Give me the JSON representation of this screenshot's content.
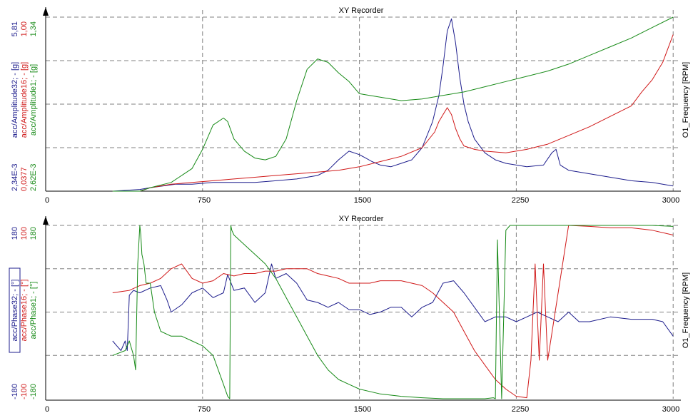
{
  "colors": {
    "blue": "#1c1c8c",
    "red": "#d01818",
    "green": "#178a17",
    "grid": "#808080"
  },
  "chart_data": [
    {
      "type": "line",
      "title": "XY Recorder",
      "xlabel": "O1_Frequency [RPM]",
      "xlim": [
        0,
        3030
      ],
      "xticks": [
        "0",
        "750",
        "1500",
        "2250",
        "3000"
      ],
      "grid": true,
      "axes": [
        {
          "label": "acc/Amplitude32; - [g]",
          "min_label": "2,34E-3",
          "max_label": "5,81",
          "color": "blue"
        },
        {
          "label": "acc/Amplitude16; - [g]",
          "min_label": "0,0377",
          "max_label": "1,00",
          "color": "red"
        },
        {
          "label": "acc/Amplitude1; - [g]",
          "min_label": "2,62E-3",
          "max_label": "1,34",
          "color": "green"
        }
      ],
      "series": [
        {
          "name": "acc/Amplitude32",
          "color": "blue",
          "x": [
            320,
            450,
            500,
            560,
            620,
            700,
            800,
            900,
            1000,
            1100,
            1200,
            1300,
            1350,
            1400,
            1450,
            1500,
            1530,
            1560,
            1600,
            1650,
            1700,
            1750,
            1800,
            1850,
            1880,
            1900,
            1920,
            1940,
            1960,
            1980,
            2000,
            2020,
            2050,
            2100,
            2150,
            2200,
            2300,
            2380,
            2420,
            2440,
            2460,
            2500,
            2600,
            2700,
            2800,
            2900,
            3000
          ],
          "y": [
            0.0,
            0.01,
            0.02,
            0.03,
            0.04,
            0.04,
            0.05,
            0.05,
            0.05,
            0.06,
            0.07,
            0.09,
            0.12,
            0.18,
            0.23,
            0.21,
            0.19,
            0.17,
            0.15,
            0.14,
            0.16,
            0.18,
            0.25,
            0.4,
            0.55,
            0.72,
            0.92,
            0.99,
            0.85,
            0.65,
            0.5,
            0.4,
            0.3,
            0.22,
            0.18,
            0.16,
            0.14,
            0.15,
            0.22,
            0.24,
            0.15,
            0.12,
            0.1,
            0.08,
            0.06,
            0.05,
            0.03
          ]
        },
        {
          "name": "acc/Amplitude16",
          "color": "red",
          "x": [
            320,
            450,
            500,
            550,
            600,
            700,
            800,
            900,
            1000,
            1100,
            1200,
            1300,
            1400,
            1500,
            1600,
            1700,
            1800,
            1860,
            1880,
            1900,
            1920,
            1940,
            1960,
            1980,
            2000,
            2050,
            2100,
            2200,
            2300,
            2400,
            2500,
            2600,
            2700,
            2800,
            2850,
            2900,
            2950,
            3000
          ],
          "y": [
            0.0,
            0.0,
            0.02,
            0.03,
            0.04,
            0.05,
            0.06,
            0.07,
            0.08,
            0.09,
            0.1,
            0.11,
            0.12,
            0.14,
            0.17,
            0.2,
            0.25,
            0.34,
            0.4,
            0.44,
            0.48,
            0.44,
            0.36,
            0.3,
            0.26,
            0.24,
            0.23,
            0.22,
            0.24,
            0.27,
            0.32,
            0.37,
            0.43,
            0.49,
            0.57,
            0.64,
            0.74,
            0.9
          ]
        },
        {
          "name": "acc/Amplitude1",
          "color": "green",
          "x": [
            320,
            450,
            500,
            600,
            700,
            750,
            800,
            850,
            870,
            900,
            950,
            1000,
            1050,
            1100,
            1150,
            1200,
            1250,
            1300,
            1350,
            1400,
            1450,
            1500,
            1600,
            1700,
            1800,
            1900,
            2000,
            2100,
            2200,
            2300,
            2400,
            2500,
            2600,
            2700,
            2800,
            2900,
            3000
          ],
          "y": [
            0.0,
            0.0,
            0.02,
            0.05,
            0.13,
            0.24,
            0.38,
            0.42,
            0.4,
            0.3,
            0.23,
            0.19,
            0.18,
            0.2,
            0.3,
            0.52,
            0.7,
            0.76,
            0.74,
            0.68,
            0.63,
            0.56,
            0.54,
            0.52,
            0.53,
            0.55,
            0.57,
            0.6,
            0.63,
            0.66,
            0.69,
            0.73,
            0.78,
            0.83,
            0.88,
            0.94,
            1.0
          ]
        }
      ]
    },
    {
      "type": "line",
      "title": "XY Recorder",
      "xlabel": "O1_Frequency [RPM]",
      "xlim": [
        0,
        3030
      ],
      "xticks": [
        "0",
        "750",
        "1500",
        "2250",
        "3000"
      ],
      "ylim": [
        -180,
        180
      ],
      "grid": true,
      "axes": [
        {
          "label": "acc/Phase32; - [°]",
          "min_label": "-180",
          "max_label": "180",
          "color": "blue"
        },
        {
          "label": "acc/Phase16; - [°]",
          "min_label": "-100",
          "max_label": "100",
          "color": "red"
        },
        {
          "label": "acc/Phase1; - [°]",
          "min_label": "-180",
          "max_label": "180",
          "color": "green"
        }
      ],
      "series": [
        {
          "name": "acc/Phase32",
          "color": "blue",
          "x": [
            320,
            340,
            360,
            380,
            390,
            400,
            420,
            450,
            500,
            550,
            580,
            600,
            650,
            700,
            750,
            800,
            850,
            870,
            900,
            950,
            1000,
            1050,
            1080,
            1100,
            1150,
            1200,
            1250,
            1300,
            1350,
            1400,
            1450,
            1500,
            1550,
            1600,
            1650,
            1700,
            1750,
            1800,
            1850,
            1900,
            1950,
            2000,
            2050,
            2100,
            2150,
            2200,
            2250,
            2300,
            2350,
            2400,
            2450,
            2500,
            2550,
            2600,
            2700,
            2800,
            2900,
            2950,
            3000
          ],
          "y": [
            -60,
            -70,
            -80,
            -60,
            -80,
            35,
            45,
            40,
            50,
            55,
            25,
            0,
            15,
            40,
            50,
            30,
            40,
            78,
            45,
            50,
            20,
            40,
            100,
            70,
            80,
            60,
            25,
            20,
            10,
            20,
            5,
            5,
            -5,
            0,
            10,
            10,
            -10,
            10,
            20,
            60,
            65,
            40,
            10,
            -20,
            -10,
            -10,
            -20,
            -10,
            0,
            -10,
            -20,
            0,
            -20,
            -20,
            -10,
            -15,
            -15,
            -20,
            -50
          ]
        },
        {
          "name": "acc/Phase16",
          "color": "red",
          "x": [
            320,
            400,
            450,
            500,
            550,
            600,
            650,
            700,
            750,
            800,
            850,
            900,
            950,
            1000,
            1050,
            1100,
            1150,
            1200,
            1250,
            1300,
            1350,
            1400,
            1450,
            1500,
            1550,
            1600,
            1650,
            1700,
            1750,
            1800,
            1850,
            1900,
            1950,
            2000,
            2050,
            2100,
            2150,
            2200,
            2250,
            2300,
            2320,
            2340,
            2360,
            2380,
            2400,
            2500,
            2600,
            2700,
            2800,
            2900,
            3000
          ],
          "y": [
            40,
            45,
            55,
            60,
            70,
            90,
            100,
            70,
            60,
            65,
            80,
            75,
            80,
            80,
            85,
            85,
            90,
            90,
            90,
            80,
            75,
            70,
            60,
            60,
            60,
            65,
            65,
            65,
            60,
            55,
            40,
            20,
            0,
            -40,
            -80,
            -110,
            -140,
            -160,
            -175,
            -178,
            -100,
            100,
            -100,
            100,
            -100,
            180,
            178,
            175,
            175,
            170,
            160
          ]
        },
        {
          "name": "acc/Phase1",
          "color": "green",
          "x": [
            320,
            380,
            400,
            420,
            430,
            440,
            450,
            455,
            460,
            470,
            480,
            500,
            520,
            550,
            600,
            650,
            700,
            750,
            800,
            850,
            870,
            880,
            885,
            890,
            900,
            950,
            1000,
            1050,
            1100,
            1150,
            1200,
            1250,
            1300,
            1350,
            1400,
            1450,
            1500,
            1600,
            1700,
            1800,
            1900,
            2000,
            2100,
            2140,
            2150,
            2160,
            2180,
            2200,
            2220,
            2250,
            2300,
            2400,
            2500,
            2600,
            2700,
            2800,
            2900,
            3000
          ],
          "y": [
            -90,
            -80,
            -60,
            -90,
            -120,
            100,
            180,
            160,
            120,
            100,
            60,
            60,
            0,
            -40,
            -50,
            -50,
            -60,
            -70,
            -90,
            -150,
            -175,
            -180,
            180,
            170,
            160,
            140,
            120,
            100,
            70,
            30,
            -10,
            -50,
            -90,
            -120,
            -140,
            -150,
            -160,
            -170,
            -175,
            -178,
            -180,
            -180,
            -180,
            -178,
            -180,
            150,
            -180,
            170,
            180,
            180,
            180,
            180,
            180,
            180,
            180,
            180,
            180,
            178
          ]
        }
      ]
    }
  ]
}
